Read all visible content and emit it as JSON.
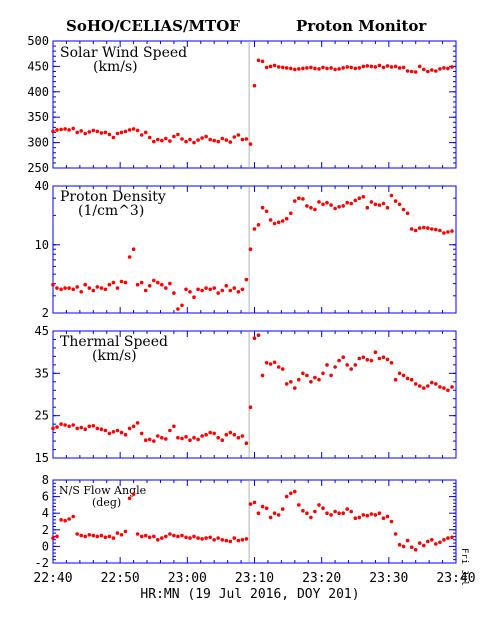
{
  "header": {
    "left_title": "SoHO/CELIAS/MTOF",
    "right_title": "Proton Monitor"
  },
  "x_axis": {
    "title": "HR:MN (19 Jul 2016, DOY 201)",
    "tick_labels": [
      "22:40",
      "22:50",
      "23:00",
      "23:10",
      "23:20",
      "23:30",
      "23:40"
    ],
    "side_label": "Fri Jul"
  },
  "colors": {
    "frame": "#0000ff",
    "points": "#ff0000",
    "gap_line": "#b0b0b0"
  },
  "chart_data": [
    {
      "type": "scatter",
      "title": "Solar Wind Speed",
      "unit": "(km/s)",
      "ylim": [
        250,
        500
      ],
      "y_tick_labels": [
        "250",
        "300",
        "350",
        "400",
        "450",
        "500"
      ],
      "y_tick_values": [
        250,
        300,
        350,
        400,
        450,
        500
      ],
      "x_range_minutes": [
        0,
        60
      ],
      "data_gap_minutes": 29.2,
      "x": [
        0.0,
        0.6,
        1.2,
        1.8,
        2.4,
        3.0,
        3.6,
        4.2,
        4.8,
        5.4,
        6.0,
        6.6,
        7.2,
        7.8,
        8.4,
        9.0,
        9.6,
        10.2,
        10.8,
        11.4,
        12.0,
        12.6,
        13.2,
        13.8,
        14.4,
        15.0,
        15.6,
        16.2,
        16.8,
        17.4,
        18.0,
        18.6,
        19.2,
        19.8,
        20.4,
        21.0,
        21.6,
        22.2,
        22.8,
        23.4,
        24.0,
        24.6,
        25.2,
        25.8,
        26.4,
        27.0,
        27.6,
        28.2,
        28.8,
        29.4,
        30.0,
        30.6,
        31.2,
        31.8,
        32.4,
        33.0,
        33.6,
        34.2,
        34.8,
        35.4,
        36.0,
        36.6,
        37.2,
        37.8,
        38.4,
        39.0,
        39.6,
        40.2,
        40.8,
        41.4,
        42.0,
        42.6,
        43.2,
        43.8,
        44.4,
        45.0,
        45.6,
        46.2,
        46.8,
        47.4,
        48.0,
        48.6,
        49.2,
        49.8,
        50.4,
        51.0,
        51.6,
        52.2,
        52.8,
        53.4,
        54.0,
        54.6,
        55.2,
        55.8,
        56.4,
        57.0,
        57.6,
        58.2,
        58.8,
        59.4
      ],
      "y": [
        322,
        325,
        326,
        327,
        325,
        328,
        320,
        323,
        318,
        321,
        324,
        322,
        319,
        320,
        316,
        310,
        318,
        320,
        322,
        325,
        327,
        324,
        315,
        320,
        310,
        302,
        306,
        304,
        308,
        303,
        312,
        316,
        307,
        302,
        306,
        300,
        305,
        309,
        312,
        306,
        304,
        302,
        308,
        305,
        301,
        311,
        315,
        306,
        307,
        297,
        412,
        462,
        460,
        448,
        450,
        452,
        449,
        448,
        447,
        446,
        444,
        445,
        446,
        447,
        448,
        446,
        445,
        448,
        446,
        447,
        444,
        445,
        447,
        449,
        448,
        446,
        447,
        450,
        451,
        450,
        449,
        452,
        448,
        451,
        449,
        450,
        447,
        448,
        441,
        440,
        439,
        450,
        444,
        440,
        443,
        441,
        445,
        447,
        446,
        449
      ]
    },
    {
      "type": "scatter",
      "title": "Proton Density",
      "unit": "(1/cm^3)",
      "scale": "log",
      "ylim": [
        2,
        40
      ],
      "y_tick_labels": [
        "2",
        "10",
        "40"
      ],
      "y_tick_values": [
        2,
        10,
        40
      ],
      "x_range_minutes": [
        0,
        60
      ],
      "data_gap_minutes": 29.2,
      "x": [
        0.0,
        0.6,
        1.2,
        1.8,
        2.4,
        3.0,
        3.6,
        4.2,
        4.8,
        5.4,
        6.0,
        6.6,
        7.2,
        7.8,
        8.4,
        9.0,
        9.6,
        10.2,
        10.8,
        11.4,
        12.0,
        12.6,
        13.2,
        13.8,
        14.4,
        15.0,
        15.6,
        16.2,
        16.8,
        17.4,
        18.0,
        18.6,
        19.2,
        19.8,
        20.4,
        21.0,
        21.6,
        22.2,
        22.8,
        23.4,
        24.0,
        24.6,
        25.2,
        25.8,
        26.4,
        27.0,
        27.6,
        28.2,
        28.8,
        29.4,
        30.0,
        30.6,
        31.2,
        31.8,
        32.4,
        33.0,
        33.6,
        34.2,
        34.8,
        35.4,
        36.0,
        36.6,
        37.2,
        37.8,
        38.4,
        39.0,
        39.6,
        40.2,
        40.8,
        41.4,
        42.0,
        42.6,
        43.2,
        43.8,
        44.4,
        45.0,
        45.6,
        46.2,
        46.8,
        47.4,
        48.0,
        48.6,
        49.2,
        49.8,
        50.4,
        51.0,
        51.6,
        52.2,
        52.8,
        53.4,
        54.0,
        54.6,
        55.2,
        55.8,
        56.4,
        57.0,
        57.6,
        58.2,
        58.8,
        59.4
      ],
      "y": [
        3.9,
        3.6,
        3.5,
        3.6,
        3.6,
        3.5,
        3.7,
        3.3,
        3.9,
        3.6,
        3.4,
        3.7,
        3.6,
        3.5,
        3.9,
        4.1,
        3.6,
        4.2,
        4.1,
        7.5,
        9.0,
        3.9,
        4.1,
        3.4,
        3.8,
        4.3,
        4.1,
        3.9,
        3.6,
        4.0,
        3.2,
        2.2,
        2.4,
        3.5,
        3.3,
        2.9,
        3.5,
        3.4,
        3.6,
        3.5,
        3.6,
        3.2,
        3.4,
        3.8,
        3.4,
        3.6,
        3.3,
        3.5,
        4.4,
        9.0,
        14.5,
        16.0,
        24.0,
        22.0,
        18.0,
        16.5,
        17.0,
        17.5,
        18.5,
        21.0,
        28.0,
        30.0,
        29.5,
        25.0,
        24.0,
        23.0,
        27.5,
        26.0,
        27.0,
        25.5,
        23.5,
        24.5,
        25.0,
        27.0,
        26.5,
        28.5,
        30.0,
        31.0,
        24.0,
        27.5,
        26.0,
        25.5,
        26.5,
        24.0,
        32.0,
        28.0,
        26.0,
        23.0,
        21.0,
        14.5,
        14.0,
        14.8,
        15.0,
        14.8,
        14.5,
        14.3,
        14.0,
        13.2,
        13.5,
        13.8
      ]
    },
    {
      "type": "scatter",
      "title": "Thermal Speed",
      "unit": "(km/s)",
      "ylim": [
        15,
        45
      ],
      "y_tick_labels": [
        "15",
        "25",
        "35",
        "45"
      ],
      "y_tick_values": [
        15,
        25,
        35,
        45
      ],
      "x_range_minutes": [
        0,
        60
      ],
      "data_gap_minutes": 29.2,
      "x": [
        0.0,
        0.6,
        1.2,
        1.8,
        2.4,
        3.0,
        3.6,
        4.2,
        4.8,
        5.4,
        6.0,
        6.6,
        7.2,
        7.8,
        8.4,
        9.0,
        9.6,
        10.2,
        10.8,
        11.4,
        12.0,
        12.6,
        13.2,
        13.8,
        14.4,
        15.0,
        15.6,
        16.2,
        16.8,
        17.4,
        18.0,
        18.6,
        19.2,
        19.8,
        20.4,
        21.0,
        21.6,
        22.2,
        22.8,
        23.4,
        24.0,
        24.6,
        25.2,
        25.8,
        26.4,
        27.0,
        27.6,
        28.2,
        28.8,
        29.4,
        30.0,
        30.6,
        31.2,
        31.8,
        32.4,
        33.0,
        33.6,
        34.2,
        34.8,
        35.4,
        36.0,
        36.6,
        37.2,
        37.8,
        38.4,
        39.0,
        39.6,
        40.2,
        40.8,
        41.4,
        42.0,
        42.6,
        43.2,
        43.8,
        44.4,
        45.0,
        45.6,
        46.2,
        46.8,
        47.4,
        48.0,
        48.6,
        49.2,
        49.8,
        50.4,
        51.0,
        51.6,
        52.2,
        52.8,
        53.4,
        54.0,
        54.6,
        55.2,
        55.8,
        56.4,
        57.0,
        57.6,
        58.2,
        58.8,
        59.4
      ],
      "y": [
        22.0,
        22.3,
        23.0,
        22.8,
        22.5,
        22.8,
        22.0,
        22.2,
        21.8,
        22.5,
        22.6,
        22.0,
        21.8,
        21.5,
        20.8,
        21.2,
        21.5,
        21.0,
        20.5,
        22.0,
        22.5,
        23.3,
        20.8,
        19.2,
        19.4,
        19.0,
        20.2,
        19.8,
        19.5,
        21.5,
        22.5,
        19.8,
        19.6,
        20.0,
        19.2,
        19.8,
        19.4,
        20.2,
        20.5,
        21.0,
        20.8,
        19.8,
        19.2,
        20.5,
        21.0,
        20.5,
        19.8,
        20.2,
        18.5,
        27.0,
        43.3,
        44.0,
        34.5,
        37.5,
        37.2,
        37.6,
        36.5,
        36.0,
        32.5,
        33.0,
        31.5,
        33.5,
        35.0,
        34.5,
        33.0,
        34.0,
        33.5,
        35.0,
        37.0,
        34.5,
        36.5,
        38.0,
        38.8,
        37.0,
        36.0,
        37.0,
        38.5,
        38.8,
        38.2,
        38.0,
        40.0,
        38.5,
        38.8,
        38.3,
        37.5,
        33.5,
        35.0,
        34.5,
        33.8,
        33.5,
        32.5,
        32.0,
        31.5,
        32.0,
        32.8,
        32.5,
        31.8,
        31.5,
        31.0,
        31.8
      ]
    },
    {
      "type": "scatter",
      "title": "N/S Flow Angle",
      "unit": "(deg)",
      "ylim": [
        -2,
        8
      ],
      "y_tick_labels": [
        "-2",
        "0",
        "2",
        "4",
        "6",
        "8"
      ],
      "y_tick_values": [
        -2,
        0,
        2,
        4,
        6,
        8
      ],
      "x_range_minutes": [
        0,
        60
      ],
      "data_gap_minutes": 29.2,
      "x": [
        0.0,
        0.6,
        1.2,
        1.8,
        2.4,
        3.0,
        3.6,
        4.2,
        4.8,
        5.4,
        6.0,
        6.6,
        7.2,
        7.8,
        8.4,
        9.0,
        9.6,
        10.2,
        10.8,
        11.4,
        12.0,
        12.6,
        13.2,
        13.8,
        14.4,
        15.0,
        15.6,
        16.2,
        16.8,
        17.4,
        18.0,
        18.6,
        19.2,
        19.8,
        20.4,
        21.0,
        21.6,
        22.2,
        22.8,
        23.4,
        24.0,
        24.6,
        25.2,
        25.8,
        26.4,
        27.0,
        27.6,
        28.2,
        28.8,
        29.4,
        30.0,
        30.6,
        31.2,
        31.8,
        32.4,
        33.0,
        33.6,
        34.2,
        34.8,
        35.4,
        36.0,
        36.6,
        37.2,
        37.8,
        38.4,
        39.0,
        39.6,
        40.2,
        40.8,
        41.4,
        42.0,
        42.6,
        43.2,
        43.8,
        44.4,
        45.0,
        45.6,
        46.2,
        46.8,
        47.4,
        48.0,
        48.6,
        49.2,
        49.8,
        50.4,
        51.0,
        51.6,
        52.2,
        52.8,
        53.4,
        54.0,
        54.6,
        55.2,
        55.8,
        56.4,
        57.0,
        57.6,
        58.2,
        58.8,
        59.4
      ],
      "y": [
        1.0,
        1.2,
        3.2,
        3.1,
        3.3,
        3.6,
        1.5,
        1.3,
        1.2,
        1.4,
        1.3,
        1.2,
        1.3,
        1.1,
        1.2,
        1.0,
        1.6,
        1.4,
        1.8,
        5.8,
        6.3,
        1.5,
        1.2,
        1.3,
        1.1,
        1.2,
        0.8,
        1.0,
        1.2,
        1.5,
        1.3,
        1.2,
        1.3,
        1.1,
        1.0,
        1.2,
        1.0,
        0.9,
        1.0,
        1.1,
        0.8,
        1.0,
        0.8,
        0.7,
        0.6,
        1.0,
        0.7,
        0.8,
        0.9,
        5.1,
        5.3,
        4.0,
        4.8,
        4.6,
        3.5,
        4.0,
        3.8,
        4.5,
        6.0,
        6.4,
        6.6,
        5.0,
        4.3,
        4.0,
        3.5,
        4.2,
        5.0,
        4.6,
        4.0,
        3.8,
        4.2,
        4.0,
        4.0,
        4.5,
        4.2,
        3.4,
        3.5,
        3.8,
        3.7,
        3.9,
        3.8,
        4.0,
        3.4,
        3.6,
        3.0,
        1.5,
        0.2,
        0.0,
        0.7,
        -0.1,
        -0.4,
        0.4,
        0.1,
        0.6,
        0.8,
        0.3,
        0.5,
        0.8,
        1.0,
        1.1
      ]
    }
  ]
}
